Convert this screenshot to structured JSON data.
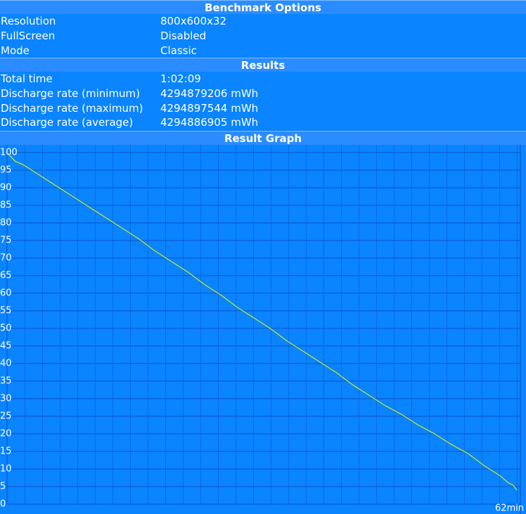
{
  "sections": [
    {
      "title": "Benchmark Options",
      "rows": [
        [
          "Resolution",
          "800x600x32"
        ],
        [
          "FullScreen",
          "Disabled"
        ],
        [
          "Mode",
          "Classic"
        ]
      ]
    },
    {
      "title": "Results",
      "rows": [
        [
          "Total time",
          "1:02:09"
        ],
        [
          "Discharge rate (minimum)",
          "4294879206 mWh"
        ],
        [
          "Discharge rate (maximum)",
          "4294897544 mWh"
        ],
        [
          "Discharge rate (average)",
          "4294886905 mWh"
        ]
      ]
    }
  ],
  "chart_data": {
    "type": "line",
    "title": "Result Graph",
    "x_end_label": "62min",
    "color": "#c8e619",
    "x": [
      0,
      1,
      2,
      4,
      6,
      8,
      10,
      12,
      14,
      16,
      18,
      20,
      22,
      24,
      26,
      28,
      30,
      32,
      34,
      36,
      38,
      40,
      42,
      44,
      46,
      48,
      50,
      52,
      54,
      56,
      58,
      60,
      61,
      61.5,
      62
    ],
    "values": [
      100,
      97.5,
      96.5,
      93.5,
      90.5,
      87.5,
      84.5,
      81.5,
      78.5,
      75.5,
      72,
      69,
      66,
      62.5,
      59.5,
      56,
      53,
      50,
      46.5,
      43.5,
      40.5,
      37.5,
      34,
      31,
      28,
      25.5,
      22.5,
      20,
      17,
      14.5,
      11,
      8,
      6,
      5.5,
      4
    ],
    "xlim": [
      0,
      62
    ],
    "ylim": [
      0,
      100
    ],
    "yticks": [
      0,
      5,
      10,
      15,
      20,
      25,
      30,
      35,
      40,
      45,
      50,
      55,
      60,
      65,
      70,
      75,
      80,
      85,
      90,
      95,
      100
    ],
    "grid": true
  }
}
